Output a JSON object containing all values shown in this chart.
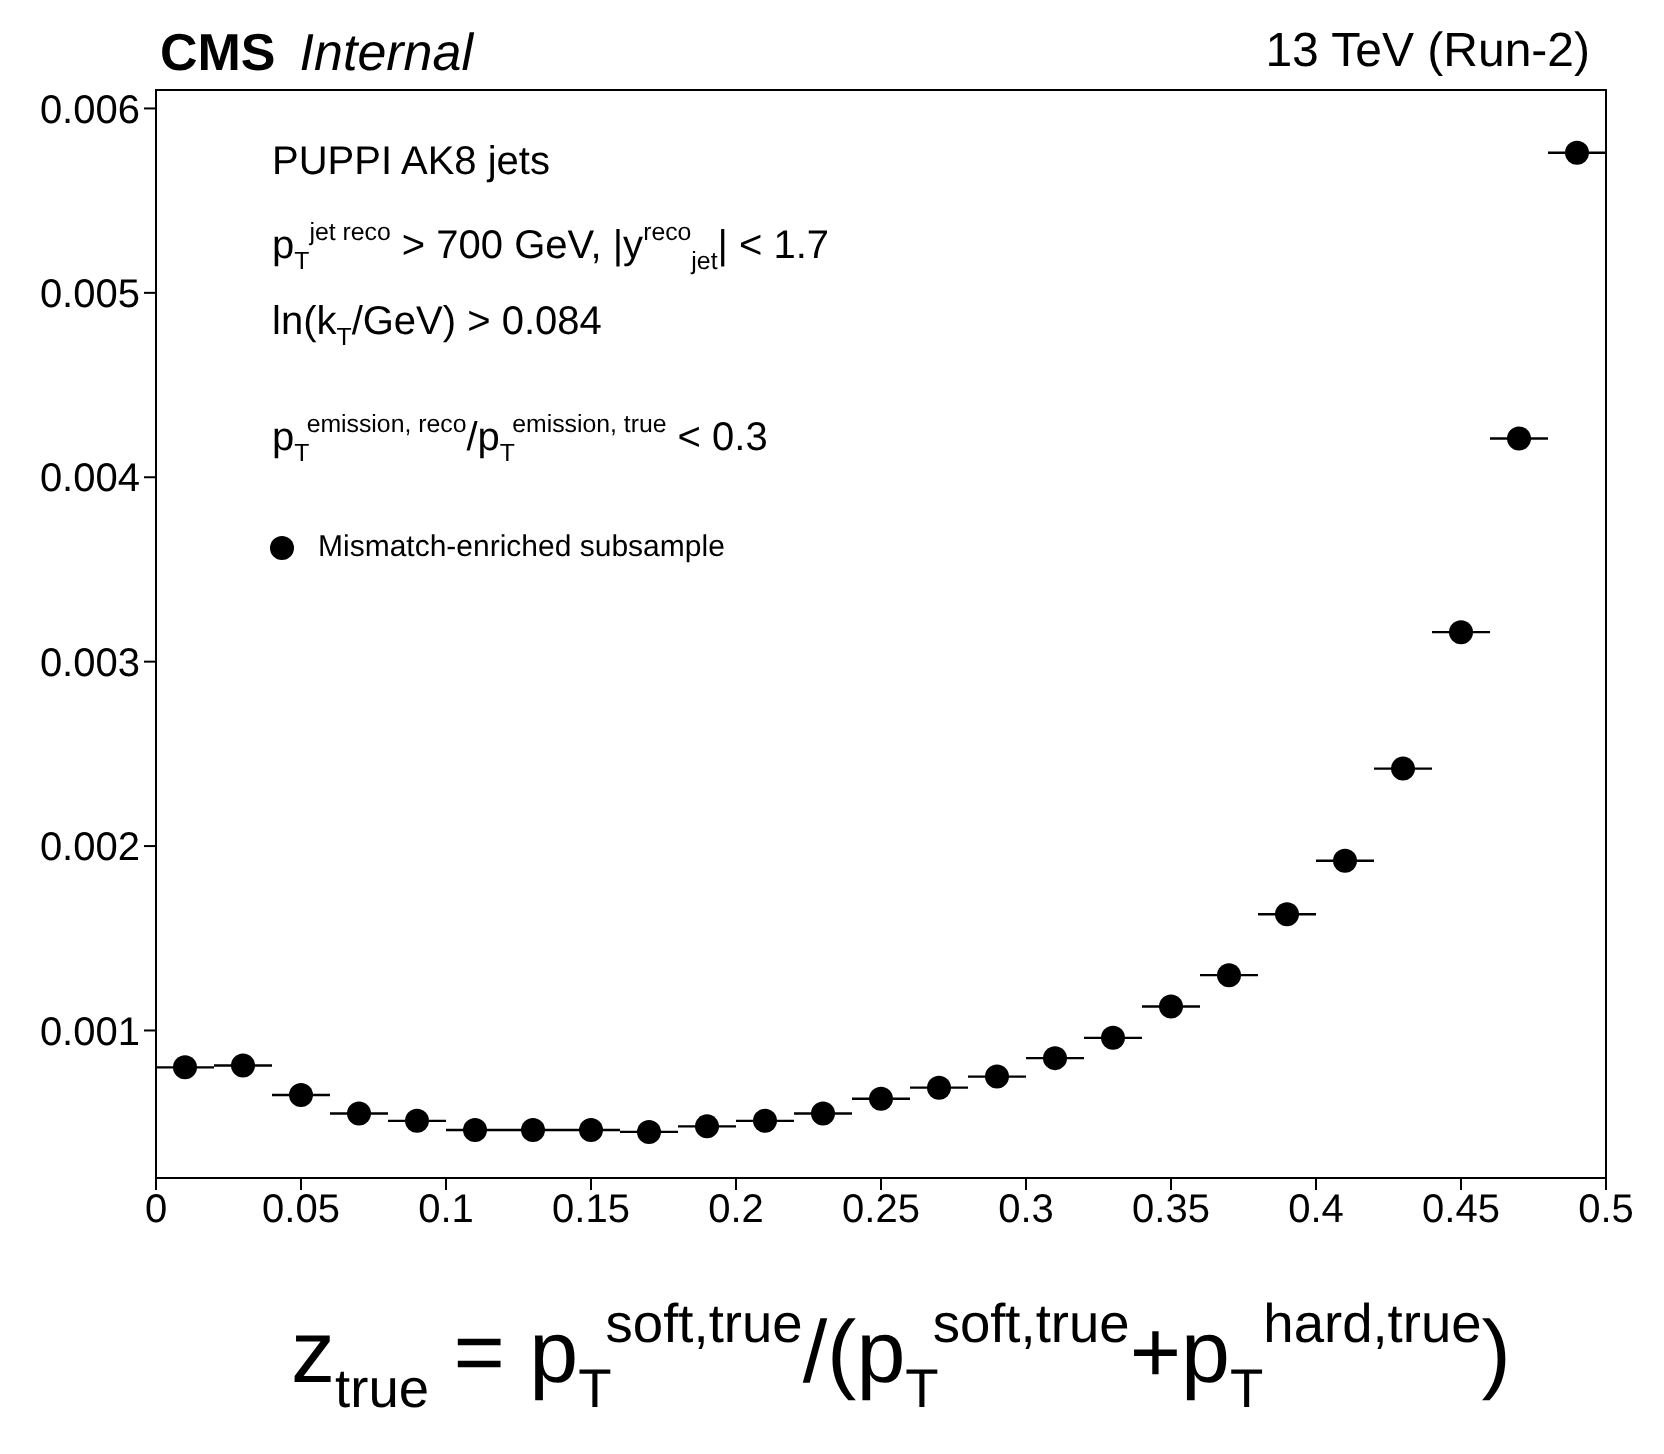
{
  "chart_data": {
    "type": "scatter",
    "title": "CMS",
    "subtitle": "Internal",
    "xlabel": "z$_{true}$ = p$_{T}$$^{soft,true}$/(p$_{T}$$^{soft,true}$+p$_{T}$$^{hard,true}$)",
    "annotations": [
      "PUPPI AK8 jets",
      "p$_{T}$$^{jet reco}$ > 700 GeV, |y$^{reco}$$_{jet}$| < 1.7",
      "ln(k$_{T}$/GeV) > 0.084",
      "p$_{T}$$^{emission, reco}$/p$_{T}$$^{emission, true}$ < 0.3",
      "13 TeV (Run-2)"
    ],
    "x": [
      0.01,
      0.03,
      0.05,
      0.07,
      0.09,
      0.11,
      0.13,
      0.15,
      0.17,
      0.19,
      0.21,
      0.23,
      0.25,
      0.27,
      0.29,
      0.31,
      0.33,
      0.35,
      0.37,
      0.39,
      0.41,
      0.43,
      0.45,
      0.47,
      0.49
    ],
    "series": [
      {
        "name": "Mismatch-enriched subsample",
        "color": "#000000",
        "values": [
          0.0008,
          0.00081,
          0.00065,
          0.00055,
          0.00051,
          0.00046,
          0.00046,
          0.00046,
          0.00045,
          0.00048,
          0.00051,
          0.00055,
          0.00063,
          0.00069,
          0.00075,
          0.00085,
          0.00096,
          0.00113,
          0.0013,
          0.00163,
          0.00192,
          0.00242,
          0.00316,
          0.00421,
          0.00576
        ],
        "xerrors": [
          0.01,
          0.01,
          0.01,
          0.01,
          0.01,
          0.01,
          0.01,
          0.01,
          0.01,
          0.01,
          0.01,
          0.01,
          0.01,
          0.01,
          0.01,
          0.01,
          0.01,
          0.01,
          0.01,
          0.01,
          0.01,
          0.01,
          0.01,
          0.01,
          0.01
        ]
      }
    ],
    "xlim": [
      0,
      0.5
    ],
    "xticks": [
      0,
      0.05,
      0.1,
      0.15,
      0.2,
      0.25,
      0.3,
      0.35,
      0.4,
      0.45,
      0.5
    ],
    "ylim": [
      0.0002,
      0.0061
    ],
    "yticks": [
      0.001,
      0.002,
      0.003,
      0.004,
      0.005,
      0.006
    ],
    "grid": false,
    "legend": "top left",
    "marker": "circle"
  }
}
